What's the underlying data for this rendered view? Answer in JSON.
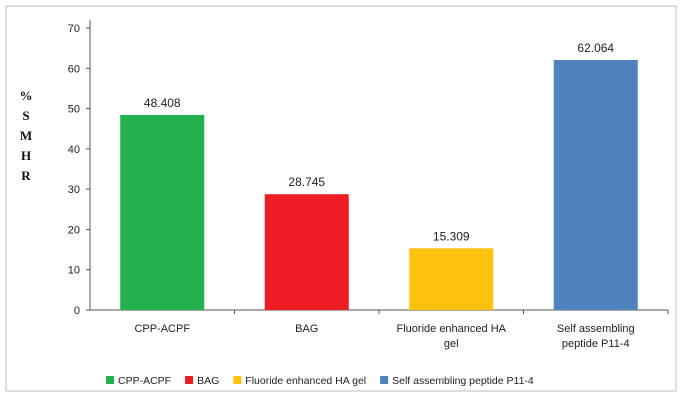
{
  "chart_data": {
    "type": "bar",
    "title": "",
    "xlabel": "",
    "ylabel": "% S M H R",
    "ylabel_letters": [
      "%",
      "S",
      "M",
      "H",
      "R"
    ],
    "ylim": [
      0,
      70
    ],
    "yticks": [
      0,
      10,
      20,
      30,
      40,
      50,
      60,
      70
    ],
    "grid": false,
    "legend_position": "bottom",
    "categories": [
      [
        "CPP-ACPF"
      ],
      [
        "BAG"
      ],
      [
        "Fluoride enhanced HA",
        "gel"
      ],
      [
        "Self assembling",
        "peptide P11-4"
      ]
    ],
    "values": [
      48.408,
      28.745,
      15.309,
      62.064
    ],
    "value_labels": [
      "48.408",
      "28.745",
      "15.309",
      "62.064"
    ],
    "colors": [
      "#22b14c",
      "#ee1c24",
      "#ffc20e",
      "#4f81bd"
    ],
    "legend": [
      "CPP-ACPF",
      "BAG",
      "Fluoride enhanced HA gel",
      "Self assembling peptide P11-4"
    ]
  }
}
